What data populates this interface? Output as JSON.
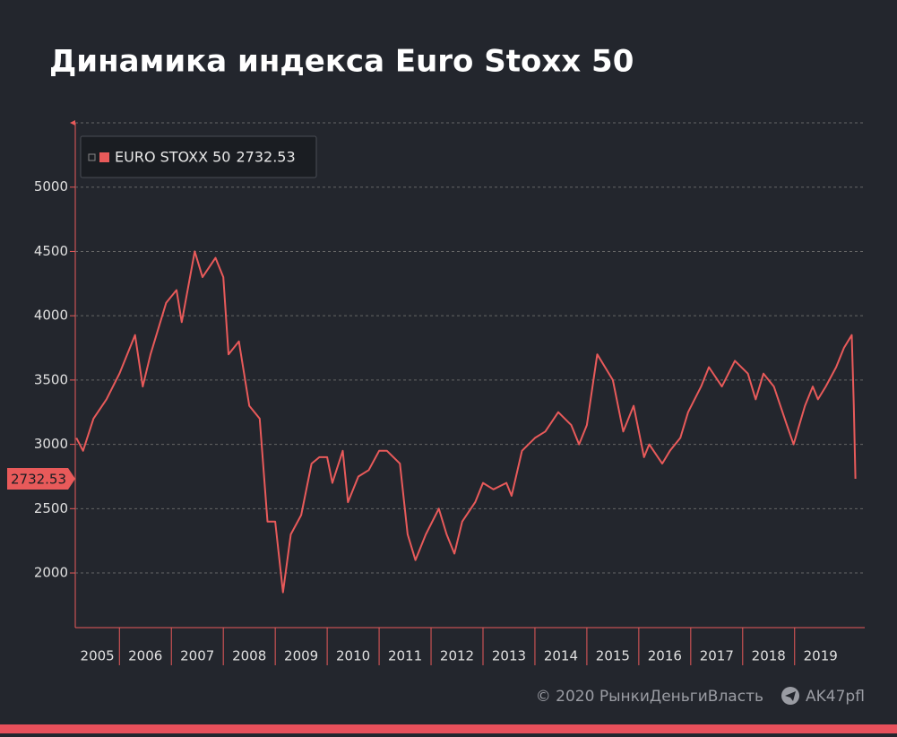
{
  "chart_data": {
    "type": "line",
    "title": "Динамика индекса Euro Stoxx 50",
    "footer": "© 2020  РынкиДеньгиВласть",
    "footer_handle": "AK47pfl",
    "series": [
      {
        "name": "EURO STOXX 50",
        "color": "#e85a5a",
        "x": [
          2005.17,
          2005.3,
          2005.5,
          2005.75,
          2006.0,
          2006.3,
          2006.45,
          2006.6,
          2006.9,
          2007.1,
          2007.2,
          2007.45,
          2007.6,
          2007.85,
          2008.0,
          2008.1,
          2008.3,
          2008.5,
          2008.7,
          2008.85,
          2009.0,
          2009.15,
          2009.3,
          2009.5,
          2009.7,
          2009.85,
          2010.0,
          2010.1,
          2010.3,
          2010.4,
          2010.6,
          2010.8,
          2011.0,
          2011.15,
          2011.4,
          2011.55,
          2011.7,
          2011.9,
          2012.15,
          2012.3,
          2012.45,
          2012.6,
          2012.85,
          2013.0,
          2013.2,
          2013.45,
          2013.55,
          2013.75,
          2014.0,
          2014.2,
          2014.45,
          2014.7,
          2014.85,
          2015.0,
          2015.2,
          2015.35,
          2015.5,
          2015.7,
          2015.9,
          2016.1,
          2016.2,
          2016.45,
          2016.6,
          2016.8,
          2016.95,
          2017.2,
          2017.35,
          2017.6,
          2017.85,
          2018.1,
          2018.25,
          2018.4,
          2018.6,
          2018.85,
          2018.98,
          2019.2,
          2019.35,
          2019.45,
          2019.6,
          2019.8,
          2019.95,
          2020.1,
          2020.14,
          2020.17
        ],
        "values": [
          3050,
          2950,
          3200,
          3350,
          3550,
          3850,
          3450,
          3700,
          4100,
          4200,
          3950,
          4500,
          4300,
          4450,
          4300,
          3700,
          3800,
          3300,
          3200,
          2400,
          2400,
          1850,
          2300,
          2450,
          2850,
          2900,
          2900,
          2700,
          2950,
          2550,
          2750,
          2800,
          2950,
          2950,
          2850,
          2300,
          2100,
          2300,
          2500,
          2300,
          2150,
          2400,
          2550,
          2700,
          2650,
          2700,
          2600,
          2950,
          3050,
          3100,
          3250,
          3150,
          3000,
          3150,
          3700,
          3600,
          3500,
          3100,
          3300,
          2900,
          3000,
          2850,
          2950,
          3050,
          3250,
          3450,
          3600,
          3450,
          3650,
          3550,
          3350,
          3550,
          3450,
          3150,
          3000,
          3300,
          3450,
          3350,
          3450,
          3600,
          3750,
          3850,
          3300,
          2732.53
        ]
      }
    ],
    "xlim": [
      2005.15,
      2020.35
    ],
    "xticks": [
      2005,
      2006,
      2007,
      2008,
      2009,
      2010,
      2011,
      2012,
      2013,
      2014,
      2015,
      2016,
      2017,
      2018,
      2019
    ],
    "ylim": [
      1575,
      5500
    ],
    "yticks": [
      2000,
      2500,
      3000,
      3500,
      4000,
      4500,
      5000
    ],
    "grid": true
  }
}
